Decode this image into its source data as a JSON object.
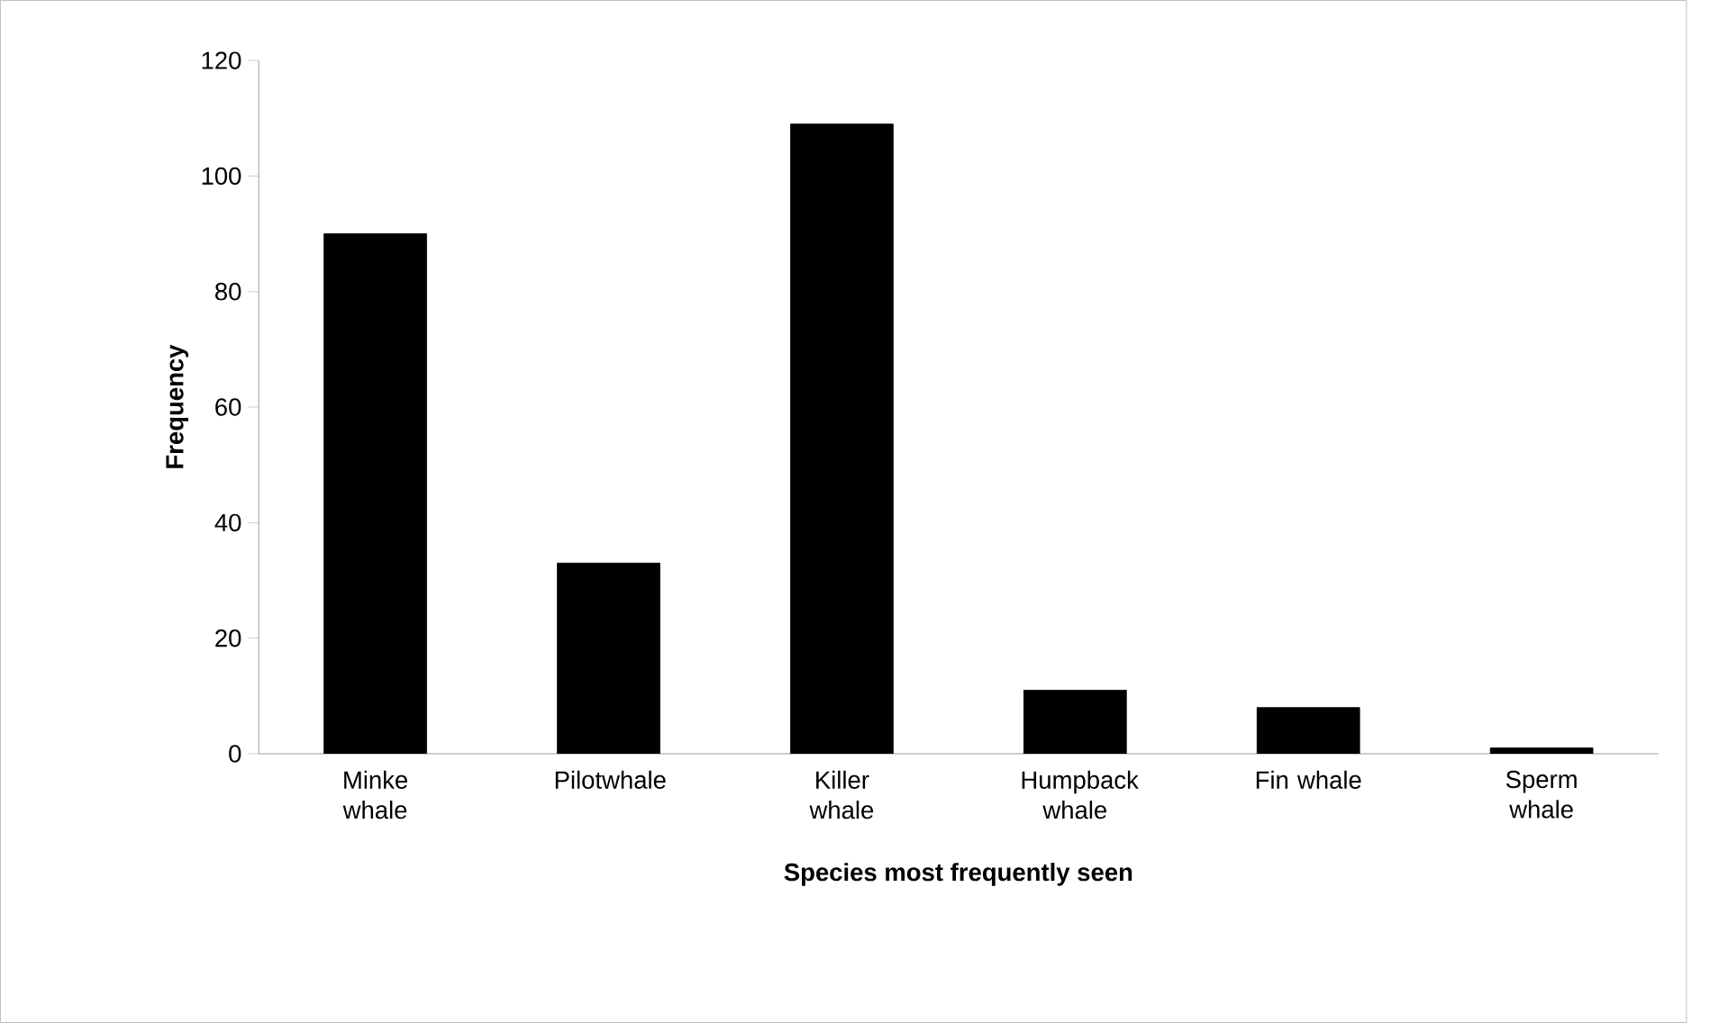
{
  "chart_data": {
    "type": "bar",
    "xlabel": "Species most frequently seen",
    "ylabel": "Frequency",
    "categories": [
      "Minke whale",
      "Pilotwhale",
      "Killer whale",
      "Humpback whale",
      "Fin whale",
      "Sperm whale"
    ],
    "values": [
      90,
      33,
      109,
      11,
      8,
      1
    ],
    "color": "#000000",
    "ylim": [
      0,
      120
    ],
    "yticks": [
      0,
      20,
      40,
      60,
      80,
      100,
      120
    ],
    "grid": false
  }
}
